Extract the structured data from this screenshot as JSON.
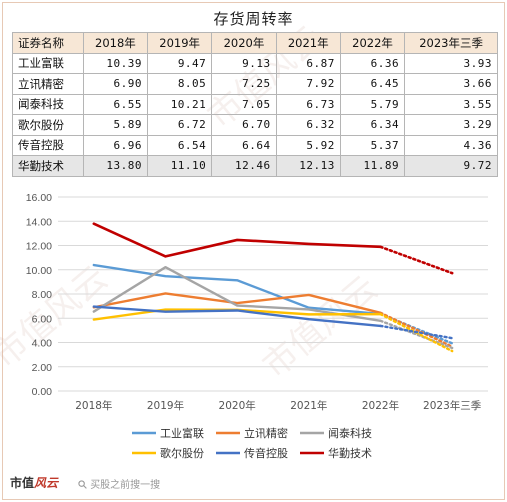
{
  "title": "存货周转率",
  "table": {
    "header": [
      "证券名称",
      "2018年",
      "2019年",
      "2020年",
      "2021年",
      "2022年",
      "2023年三季"
    ],
    "rows": [
      {
        "name": "工业富联",
        "values": [
          "10.39",
          "9.47",
          "9.13",
          "6.87",
          "6.36",
          "3.93"
        ]
      },
      {
        "name": "立讯精密",
        "values": [
          "6.90",
          "8.05",
          "7.25",
          "7.92",
          "6.45",
          "3.66"
        ]
      },
      {
        "name": "闻泰科技",
        "values": [
          "6.55",
          "10.21",
          "7.05",
          "6.73",
          "5.79",
          "3.55"
        ]
      },
      {
        "name": "歌尔股份",
        "values": [
          "5.89",
          "6.72",
          "6.70",
          "6.32",
          "6.34",
          "3.29"
        ]
      },
      {
        "name": "传音控股",
        "values": [
          "6.96",
          "6.54",
          "6.64",
          "5.92",
          "5.37",
          "4.36"
        ]
      },
      {
        "name": "华勤技术",
        "values": [
          "13.80",
          "11.10",
          "12.46",
          "12.13",
          "11.89",
          "9.72"
        ]
      }
    ]
  },
  "chart_data": {
    "type": "line",
    "categories": [
      "2018年",
      "2019年",
      "2020年",
      "2021年",
      "2022年",
      "2023年三季"
    ],
    "ylim": [
      0,
      16
    ],
    "yticks": [
      "0.00",
      "2.00",
      "4.00",
      "6.00",
      "8.00",
      "10.00",
      "12.00",
      "14.00",
      "16.00"
    ],
    "grid": true,
    "legend_position": "bottom",
    "last_segment_style": "dotted",
    "series": [
      {
        "name": "工业富联",
        "color": "#5b9bd5",
        "values": [
          10.39,
          9.47,
          9.13,
          6.87,
          6.36,
          3.93
        ]
      },
      {
        "name": "立讯精密",
        "color": "#ed7d31",
        "values": [
          6.9,
          8.05,
          7.25,
          7.92,
          6.45,
          3.66
        ]
      },
      {
        "name": "闻泰科技",
        "color": "#a5a5a5",
        "values": [
          6.55,
          10.21,
          7.05,
          6.73,
          5.79,
          3.55
        ]
      },
      {
        "name": "歌尔股份",
        "color": "#ffc000",
        "values": [
          5.89,
          6.72,
          6.7,
          6.32,
          6.34,
          3.29
        ]
      },
      {
        "name": "传音控股",
        "color": "#4472c4",
        "values": [
          6.96,
          6.54,
          6.64,
          5.92,
          5.37,
          4.36
        ]
      },
      {
        "name": "华勤技术",
        "color": "#c00000",
        "values": [
          13.8,
          11.1,
          12.46,
          12.13,
          11.89,
          9.72
        ]
      }
    ]
  },
  "footer": {
    "brand_a": "市值",
    "brand_b": "风云",
    "search_placeholder": "买股之前搜一搜",
    "search_icon": "search-icon"
  },
  "watermark": "市值风云"
}
